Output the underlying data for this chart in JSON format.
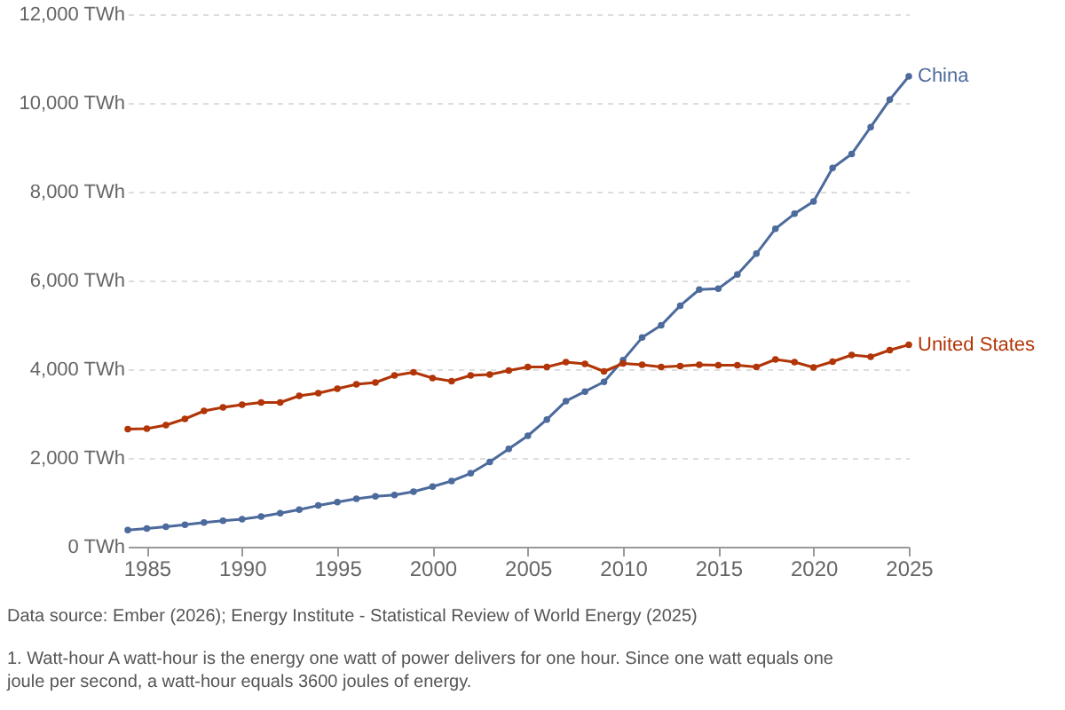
{
  "chart_data": {
    "type": "line",
    "x": [
      1984,
      1985,
      1986,
      1987,
      1988,
      1989,
      1990,
      1991,
      1992,
      1993,
      1994,
      1995,
      1996,
      1997,
      1998,
      1999,
      2000,
      2001,
      2002,
      2003,
      2004,
      2005,
      2006,
      2007,
      2008,
      2009,
      2010,
      2011,
      2012,
      2013,
      2014,
      2015,
      2016,
      2017,
      2018,
      2019,
      2020,
      2021,
      2022,
      2023,
      2024,
      2025
    ],
    "series": [
      {
        "name": "China",
        "color": "#4c6a9c",
        "values": [
          377,
          411,
          449,
          497,
          545,
          585,
          621,
          678,
          754,
          836,
          928,
          1007,
          1081,
          1134,
          1167,
          1239,
          1356,
          1480,
          1654,
          1911,
          2204,
          2500,
          2866,
          3282,
          3496,
          3715,
          4207,
          4713,
          4988,
          5432,
          5795,
          5815,
          6133,
          6604,
          7166,
          7503,
          7779,
          8534,
          8849,
          9456,
          10073,
          10600
        ]
      },
      {
        "name": "United States",
        "color": "#b13507",
        "values": [
          2650,
          2660,
          2740,
          2880,
          3060,
          3140,
          3200,
          3250,
          3250,
          3400,
          3460,
          3560,
          3660,
          3700,
          3860,
          3930,
          3800,
          3730,
          3860,
          3880,
          3970,
          4050,
          4050,
          4160,
          4120,
          3950,
          4130,
          4100,
          4050,
          4070,
          4100,
          4090,
          4090,
          4050,
          4220,
          4160,
          4040,
          4170,
          4320,
          4280,
          4430,
          4550
        ]
      }
    ],
    "xlim": [
      1984,
      2025
    ],
    "xticks": [
      1985,
      1990,
      1995,
      2000,
      2005,
      2010,
      2015,
      2020,
      2025
    ],
    "ylim": [
      0,
      12000
    ],
    "yticks": [
      {
        "value": 0,
        "label": "0 TWh"
      },
      {
        "value": 2000,
        "label": "2,000 TWh"
      },
      {
        "value": 4000,
        "label": "4,000 TWh"
      },
      {
        "value": 6000,
        "label": "6,000 TWh"
      },
      {
        "value": 8000,
        "label": "8,000 TWh"
      },
      {
        "value": 10000,
        "label": "10,000 TWh"
      },
      {
        "value": 12000,
        "label": "12,000 TWh"
      }
    ],
    "grid": "y",
    "marker": "circle",
    "line_style": "solid",
    "annotations": [
      "Data source: Ember (2026); Energy Institute - Statistical Review of World Energy (2025)",
      "1. Watt-hour A watt-hour is the energy one watt of power delivers for one hour. Since one watt equals one joule per second, a watt-hour equals 3600 joules of energy."
    ]
  }
}
